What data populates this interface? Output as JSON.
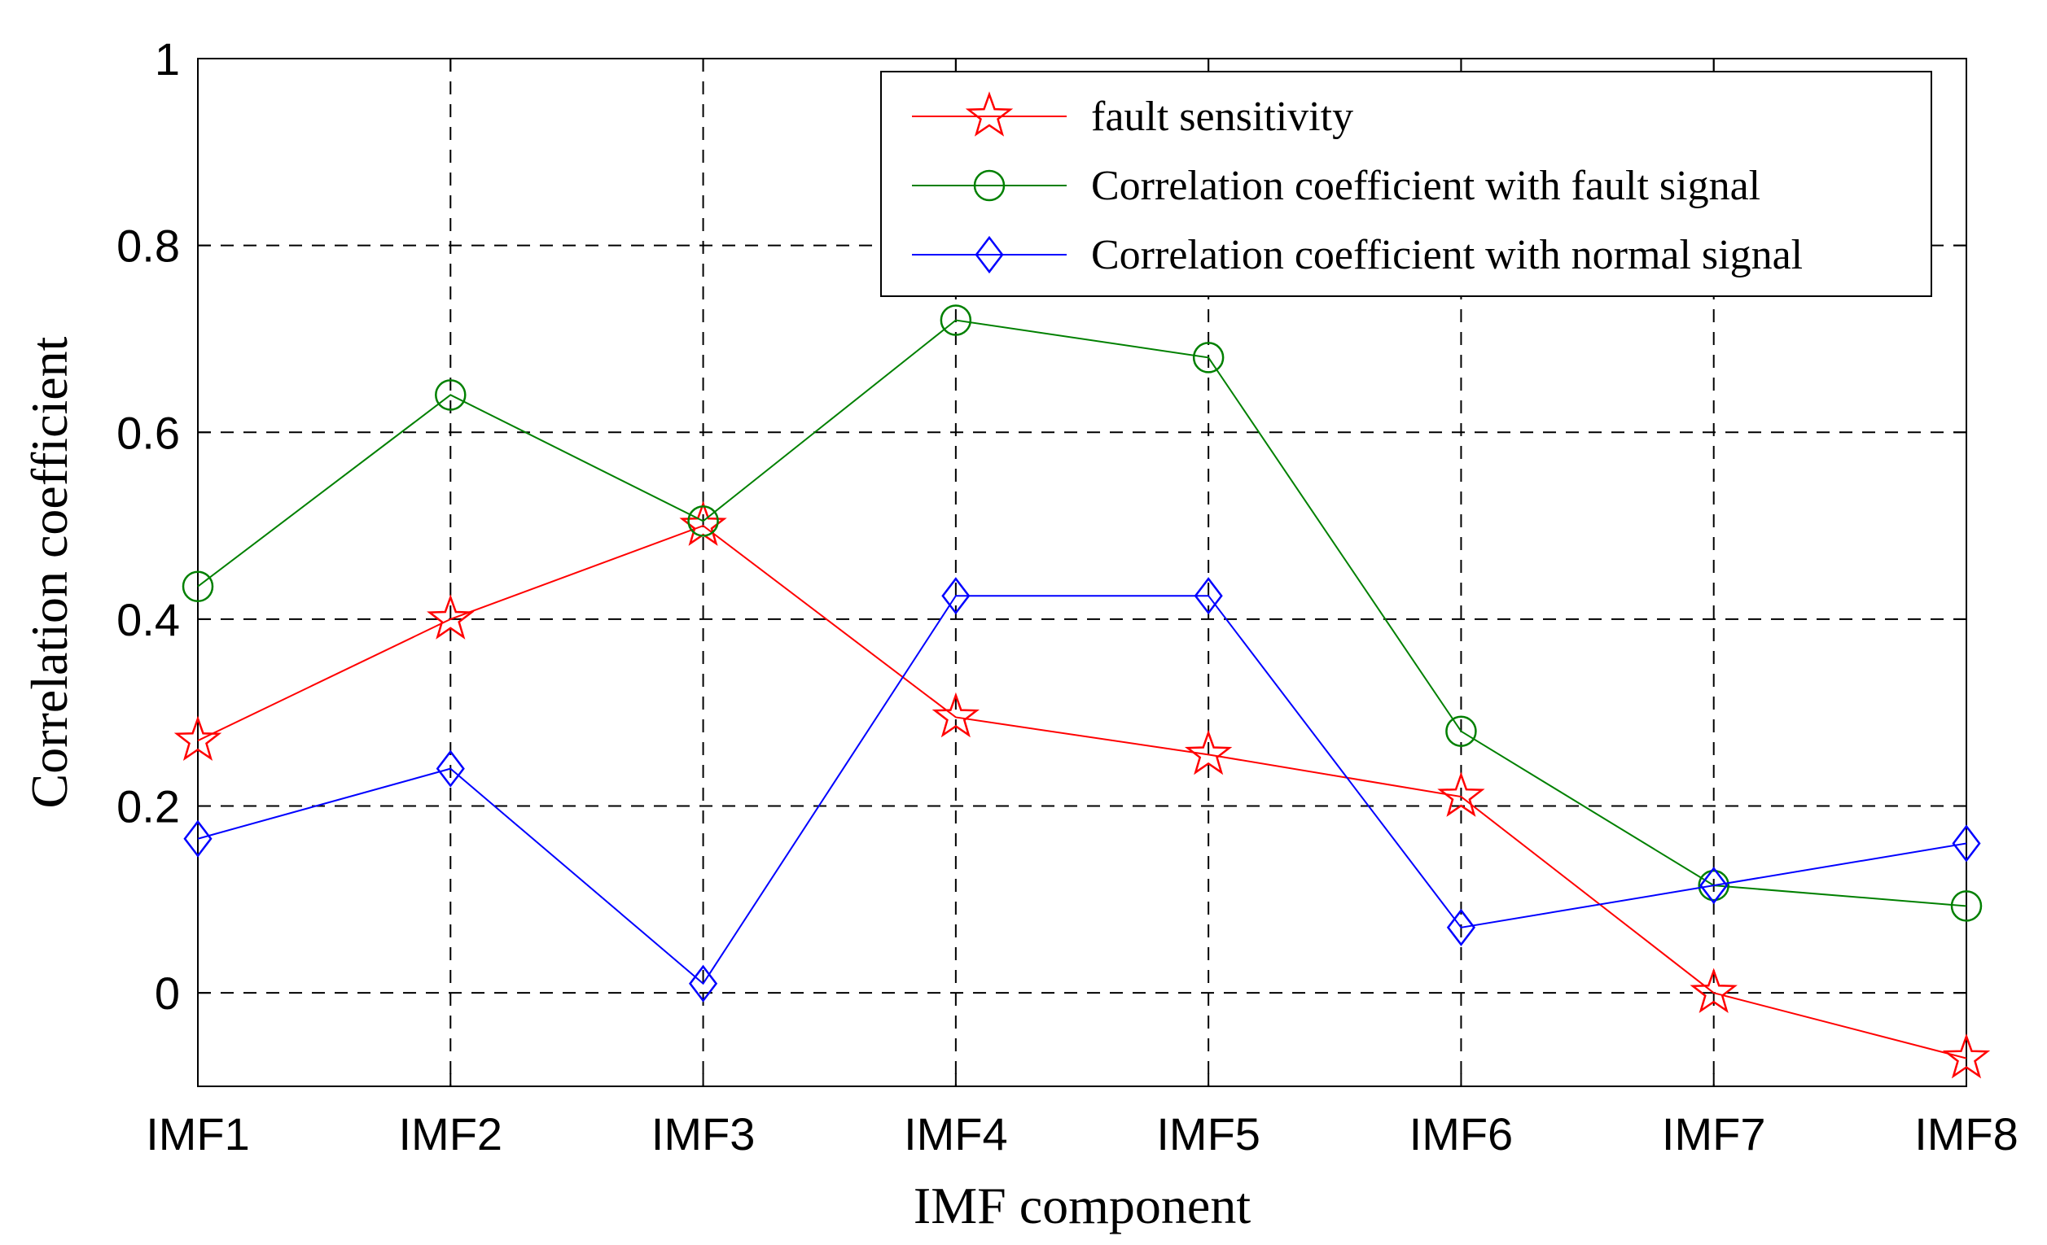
{
  "chart_data": {
    "type": "line",
    "xlabel": "IMF component",
    "ylabel": "Correlation coefficient",
    "categories": [
      "IMF1",
      "IMF2",
      "IMF3",
      "IMF4",
      "IMF5",
      "IMF6",
      "IMF7",
      "IMF8"
    ],
    "ylim": [
      -0.1,
      1
    ],
    "yticks": [
      0,
      0.2,
      0.4,
      0.6,
      0.8,
      1
    ],
    "ytick_labels": [
      "0",
      "0.2",
      "0.4",
      "0.6",
      "0.8",
      "1"
    ],
    "grid": true,
    "grid_style": "dashed",
    "legend_position": "top-right",
    "series": [
      {
        "name": "fault sensitivity",
        "color": "#ff0000",
        "marker": "star",
        "values": [
          0.27,
          0.4,
          0.5,
          0.295,
          0.255,
          0.21,
          0.0,
          -0.07
        ]
      },
      {
        "name": "Correlation coefficient with fault signal",
        "color": "#008000",
        "marker": "circle",
        "values": [
          0.435,
          0.64,
          0.505,
          0.72,
          0.68,
          0.28,
          0.115,
          0.093
        ]
      },
      {
        "name": "Correlation coefficient with normal signal",
        "color": "#0000ff",
        "marker": "diamond",
        "values": [
          0.165,
          0.24,
          0.01,
          0.425,
          0.425,
          0.07,
          0.115,
          0.16
        ]
      }
    ]
  }
}
